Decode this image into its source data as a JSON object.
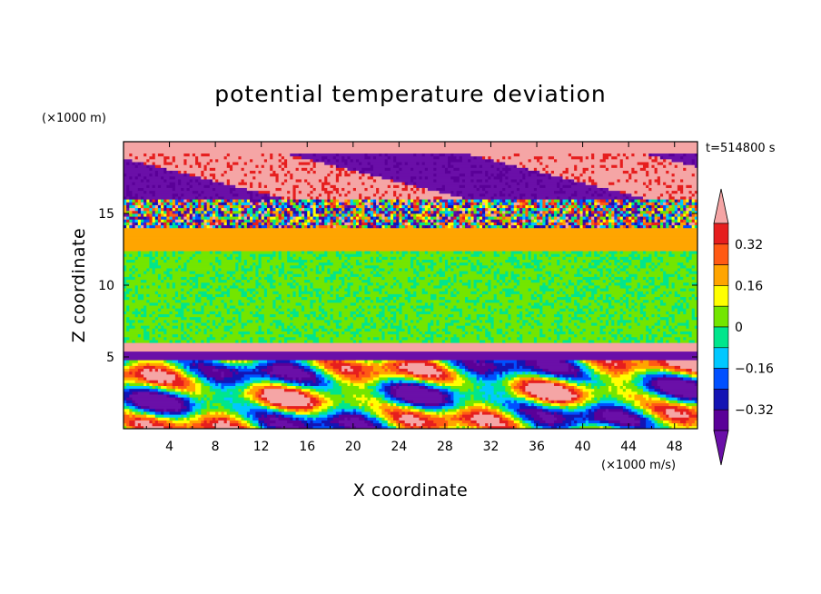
{
  "chart_data": {
    "type": "heatmap",
    "title": "potential temperature deviation",
    "xlabel": "X coordinate",
    "ylabel": "Z coordinate",
    "x_unit": "(×1000 m/s)",
    "y_unit": "(×1000 m)",
    "time_label": "t=514800 s",
    "xlim": [
      0,
      50
    ],
    "ylim": [
      0,
      20
    ],
    "x_ticks": [
      "4",
      "8",
      "12",
      "16",
      "20",
      "24",
      "28",
      "32",
      "36",
      "40",
      "44",
      "48"
    ],
    "x_tick_values": [
      4,
      8,
      12,
      16,
      20,
      24,
      28,
      32,
      36,
      40,
      44,
      48
    ],
    "y_ticks": [
      "5",
      "10",
      "15"
    ],
    "y_tick_values": [
      5,
      10,
      15
    ],
    "colorbar": {
      "levels": [
        -0.4,
        -0.32,
        -0.24,
        -0.16,
        -0.08,
        0,
        0.08,
        0.16,
        0.24,
        0.32,
        0.4
      ],
      "colors": [
        "#6a0fa8",
        "#5a0098",
        "#1414b4",
        "#0050ff",
        "#00c8ff",
        "#00e68c",
        "#73e600",
        "#ffff00",
        "#ffa500",
        "#ff5a14",
        "#e61e1e",
        "#f5a5a5"
      ],
      "tick_labels": [
        "0.32",
        "0.16",
        "0",
        "−0.16",
        "−0.32"
      ],
      "tick_values": [
        0.32,
        0.16,
        0,
        -0.16,
        -0.32
      ],
      "extend": "both"
    },
    "bands": [
      {
        "z": [
          18.8,
          20.0
        ],
        "value": 0.45
      },
      {
        "z": [
          17.5,
          18.8
        ],
        "value": -0.45
      },
      {
        "z": [
          16.0,
          17.5
        ],
        "value": 0.3
      },
      {
        "z": [
          14.0,
          16.0
        ],
        "value": -0.1
      },
      {
        "z": [
          12.5,
          14.0
        ],
        "value": 0.2
      },
      {
        "z": [
          6.0,
          12.5
        ],
        "value": 0.02
      },
      {
        "z": [
          5.5,
          6.0
        ],
        "value": 0.45
      },
      {
        "z": [
          4.8,
          5.5
        ],
        "value": -0.45
      },
      {
        "z": [
          0.0,
          4.8
        ],
        "value": 0.0
      }
    ],
    "grid": false,
    "legend": "right colorbar"
  }
}
